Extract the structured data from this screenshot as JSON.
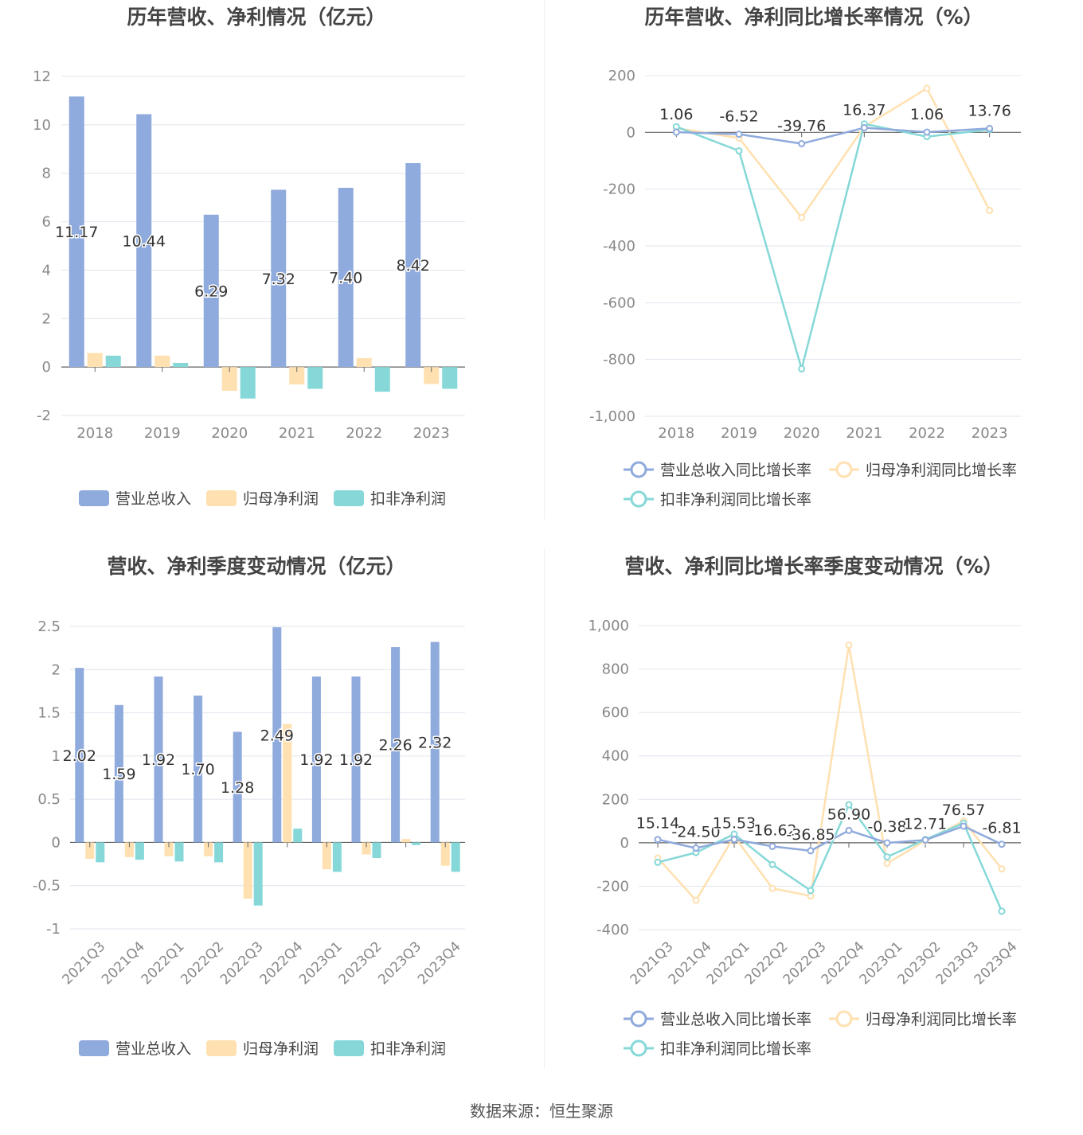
{
  "colors": {
    "revenue": "#8faadc",
    "net_profit": "#ffe0b0",
    "deducted_profit": "#86d8d8",
    "axis": "#888888",
    "grid": "#e0e4ee",
    "title": "#444444"
  },
  "legends": {
    "bars": [
      "营业总收入",
      "归母净利润",
      "扣非净利润"
    ],
    "lines": [
      "营业总收入同比增长率",
      "归母净利润同比增长率",
      "扣非净利润同比增长率"
    ]
  },
  "footer": "数据来源：恒生聚源",
  "chart_data": [
    {
      "type": "bar",
      "title": "历年营收、净利情况（亿元）",
      "categories": [
        "2018",
        "2019",
        "2020",
        "2021",
        "2022",
        "2023"
      ],
      "ylim": [
        -2,
        12
      ],
      "yticks": [
        "-2",
        "0",
        "2",
        "4",
        "6",
        "8",
        "10",
        "12"
      ],
      "grid": true,
      "legend_position": "bottom",
      "series": [
        {
          "name": "营业总收入",
          "values": [
            11.17,
            10.44,
            6.29,
            7.32,
            7.4,
            8.42
          ],
          "labels": [
            "11.17",
            "10.44",
            "6.29",
            "7.32",
            "7.40",
            "8.42"
          ]
        },
        {
          "name": "归母净利润",
          "values": [
            0.58,
            0.47,
            -0.98,
            -0.72,
            0.37,
            -0.7
          ]
        },
        {
          "name": "扣非净利润",
          "values": [
            0.47,
            0.17,
            -1.3,
            -0.9,
            -1.02,
            -0.9
          ]
        }
      ]
    },
    {
      "type": "line",
      "title": "历年营收、净利同比增长率情况（%）",
      "categories": [
        "2018",
        "2019",
        "2020",
        "2021",
        "2022",
        "2023"
      ],
      "ylim": [
        -1000,
        200
      ],
      "yticks": [
        "-1,000",
        "-800",
        "-600",
        "-400",
        "-200",
        "0",
        "200"
      ],
      "grid": true,
      "legend_position": "bottom",
      "series": [
        {
          "name": "营业总收入同比增长率",
          "values": [
            1.06,
            -6.52,
            -39.76,
            16.37,
            1.06,
            13.76
          ],
          "labels": [
            "1.06",
            "-6.52",
            "-39.76",
            "16.37",
            "1.06",
            "13.76"
          ]
        },
        {
          "name": "归母净利润同比增长率",
          "values": [
            15,
            -20,
            -300,
            20,
            155,
            -275
          ]
        },
        {
          "name": "扣非净利润同比增长率",
          "values": [
            20,
            -65,
            -833,
            30,
            -15,
            10
          ]
        }
      ]
    },
    {
      "type": "bar",
      "title": "营收、净利季度变动情况（亿元）",
      "categories": [
        "2021Q3",
        "2021Q4",
        "2022Q1",
        "2022Q2",
        "2022Q3",
        "2022Q4",
        "2023Q1",
        "2023Q2",
        "2023Q3",
        "2023Q4"
      ],
      "ylim": [
        -1,
        2.5
      ],
      "yticks": [
        "-1",
        "-0.5",
        "0",
        "0.5",
        "1",
        "1.5",
        "2",
        "2.5"
      ],
      "grid": true,
      "legend_position": "bottom",
      "series": [
        {
          "name": "营业总收入",
          "values": [
            2.02,
            1.59,
            1.92,
            1.7,
            1.28,
            2.49,
            1.92,
            1.92,
            2.26,
            2.32
          ],
          "labels": [
            "2.02",
            "1.59",
            "1.92",
            "1.70",
            "1.28",
            "2.49",
            "1.92",
            "1.92",
            "2.26",
            "2.32"
          ]
        },
        {
          "name": "归母净利润",
          "values": [
            -0.19,
            -0.17,
            -0.16,
            -0.16,
            -0.65,
            1.37,
            -0.31,
            -0.14,
            0.04,
            -0.27
          ]
        },
        {
          "name": "扣非净利润",
          "values": [
            -0.23,
            -0.2,
            -0.22,
            -0.23,
            -0.73,
            0.16,
            -0.34,
            -0.18,
            -0.03,
            -0.34
          ]
        }
      ]
    },
    {
      "type": "line",
      "title": "营收、净利同比增长率季度变动情况（%）",
      "categories": [
        "2021Q3",
        "2021Q4",
        "2022Q1",
        "2022Q2",
        "2022Q3",
        "2022Q4",
        "2023Q1",
        "2023Q2",
        "2023Q3",
        "2023Q4"
      ],
      "ylim": [
        -400,
        1000
      ],
      "yticks": [
        "-400",
        "-200",
        "0",
        "200",
        "400",
        "600",
        "800",
        "1,000"
      ],
      "grid": true,
      "legend_position": "bottom",
      "series": [
        {
          "name": "营业总收入同比增长率",
          "values": [
            15.14,
            -24.5,
            15.53,
            -16.62,
            -36.85,
            56.9,
            -0.38,
            12.71,
            76.57,
            -6.81
          ],
          "labels": [
            "15.14",
            "-24.50",
            "15.53",
            "-16.62",
            "-36.85",
            "56.90",
            "-0.38",
            "12.71",
            "76.57",
            "-6.81"
          ]
        },
        {
          "name": "归母净利润同比增长率",
          "values": [
            -70,
            -265,
            30,
            -210,
            -245,
            910,
            -95,
            10,
            100,
            -120
          ]
        },
        {
          "name": "扣非净利润同比增长率",
          "values": [
            -90,
            -45,
            40,
            -100,
            -220,
            175,
            -65,
            15,
            90,
            -315
          ]
        }
      ]
    }
  ]
}
